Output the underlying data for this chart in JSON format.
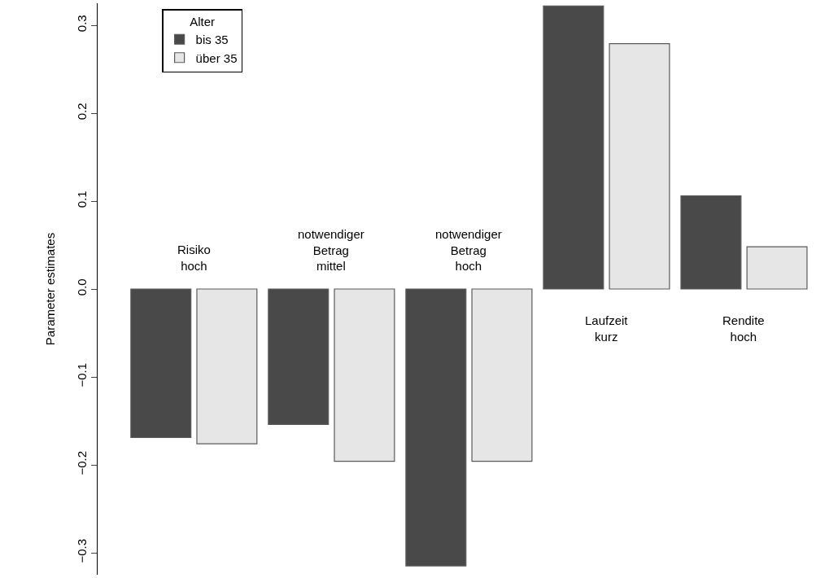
{
  "chart_data": {
    "type": "bar",
    "ylabel": "Parameter estimates",
    "legend_title": "Alter",
    "legend": "top left",
    "grid": false,
    "tick_labels": "y",
    "categories": [
      "Risiko hoch",
      "notwendiger Betrag mittel",
      "notwendiger Betrag hoch",
      "Laufzeit kurz",
      "Rendite hoch"
    ],
    "series": [
      {
        "name": "bis 35",
        "color": "#494949",
        "values": [
          -0.169,
          -0.154,
          -0.315,
          0.322,
          0.106
        ]
      },
      {
        "name": "über 35",
        "color": "#e6e6e6",
        "values": [
          -0.176,
          -0.196,
          -0.196,
          0.279,
          0.048
        ]
      }
    ],
    "ylim": [
      -0.325,
      0.325
    ],
    "yticks": [
      {
        "value": -0.3,
        "label": "−0.3"
      },
      {
        "value": -0.2,
        "label": "−0.2"
      },
      {
        "value": -0.1,
        "label": "−0.1"
      },
      {
        "value": 0,
        "label": "0.0"
      },
      {
        "value": 0.1,
        "label": "0.1"
      },
      {
        "value": 0.2,
        "label": "0.2"
      },
      {
        "value": 0.3,
        "label": "0.3"
      }
    ]
  }
}
